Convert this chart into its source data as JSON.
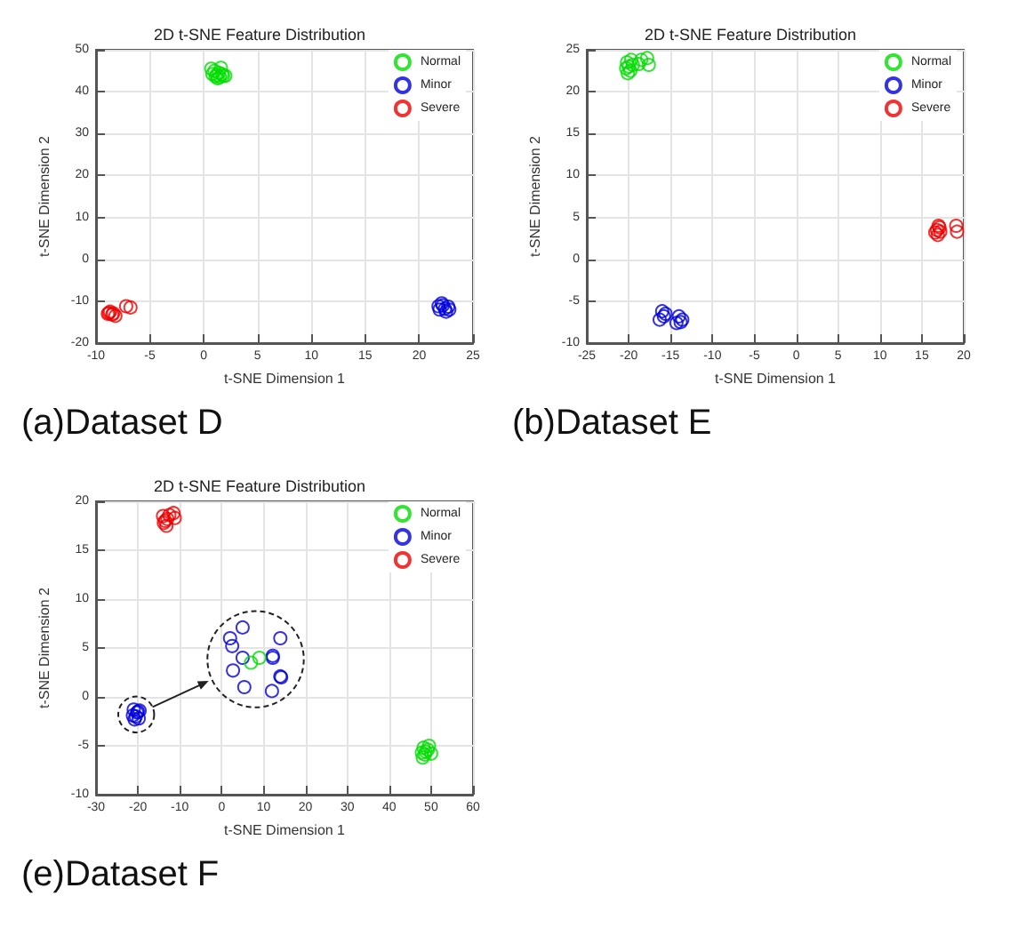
{
  "chart_data": [
    {
      "type": "scatter",
      "title": "2D t-SNE Feature Distribution",
      "xlabel": "t-SNE Dimension 1",
      "ylabel": "t-SNE Dimension 2",
      "annotations": [
        "(a)Dataset D"
      ],
      "xlim": [
        -10,
        25
      ],
      "xticks": [
        -10,
        -5,
        0,
        5,
        10,
        15,
        20,
        25
      ],
      "ylim": [
        -20,
        50
      ],
      "yticks": [
        -20,
        -10,
        0,
        10,
        20,
        30,
        40,
        50
      ],
      "grid": true,
      "legend": "top right",
      "marker": "circle",
      "series": [
        {
          "name": "Normal",
          "color": "#00dd00",
          "x": [
            0.7,
            1.6,
            1,
            1.2,
            1.5,
            1.8,
            1.3,
            2,
            0.8,
            1.4,
            1.1,
            1.7
          ],
          "values": [
            45.5,
            45.7,
            45,
            44,
            43.5,
            43.8,
            43.2,
            43.8,
            44.2,
            44.5,
            43.6,
            44.2
          ]
        },
        {
          "name": "Minor",
          "color": "#0000dd",
          "x": [
            22.2,
            22.7,
            21.9,
            22.5,
            22.1,
            22.4,
            21.8,
            22.8
          ],
          "values": [
            -11,
            -11.3,
            -12,
            -12.5,
            -10.5,
            -11.8,
            -11.2,
            -12
          ]
        },
        {
          "name": "Severe",
          "color": "#ee0000",
          "x": [
            -8.8,
            -8.5,
            -8.2,
            -8.7,
            -8.4,
            -7.2,
            -6.8,
            -8.9
          ],
          "values": [
            -12.8,
            -13.2,
            -13.5,
            -12.5,
            -12.9,
            -11.2,
            -11.5,
            -13
          ]
        }
      ]
    },
    {
      "type": "scatter",
      "title": "2D t-SNE Feature Distribution",
      "xlabel": "t-SNE Dimension 1",
      "ylabel": "t-SNE Dimension 2",
      "annotations": [
        "(b)Dataset E"
      ],
      "xlim": [
        -25,
        20
      ],
      "xticks": [
        -25,
        -20,
        -15,
        -10,
        -5,
        0,
        5,
        10,
        15,
        20
      ],
      "ylim": [
        -10,
        25
      ],
      "yticks": [
        -10,
        -5,
        0,
        5,
        10,
        15,
        20,
        25
      ],
      "grid": true,
      "legend": "top right",
      "marker": "circle",
      "series": [
        {
          "name": "Normal",
          "color": "#00dd00",
          "x": [
            -20.2,
            -19.8,
            -20,
            -19.5,
            -20.3,
            -19.7,
            -18.5,
            -17.8,
            -17.6,
            -18.8,
            -20.1
          ],
          "values": [
            23.5,
            22.5,
            23,
            23.2,
            22.8,
            23.8,
            23.8,
            24,
            23.2,
            23.3,
            22.2
          ]
        },
        {
          "name": "Minor",
          "color": "#0000dd",
          "x": [
            -16,
            -15.8,
            -16.3,
            -15.6,
            -14,
            -13.8,
            -14.3,
            -13.6
          ],
          "values": [
            -6.2,
            -6.8,
            -7.2,
            -6.5,
            -6.8,
            -7.5,
            -7.6,
            -7.2
          ]
        },
        {
          "name": "Severe",
          "color": "#ee0000",
          "x": [
            16.8,
            17,
            17.2,
            16.6,
            16.9,
            17.1,
            19.1,
            19.2
          ],
          "values": [
            3.5,
            4,
            3.3,
            3.2,
            2.9,
            3.8,
            4,
            3.3
          ]
        }
      ]
    },
    {
      "type": "scatter",
      "title": "2D t-SNE Feature Distribution",
      "xlabel": "t-SNE Dimension 1",
      "ylabel": "t-SNE Dimension 2",
      "annotations": [
        "(e)Dataset F"
      ],
      "xlim": [
        -30,
        60
      ],
      "xticks": [
        -30,
        -20,
        -10,
        0,
        10,
        20,
        30,
        40,
        50,
        60
      ],
      "ylim": [
        -10,
        20
      ],
      "yticks": [
        -10,
        -5,
        0,
        5,
        10,
        15,
        20
      ],
      "grid": true,
      "legend": "top right",
      "marker": "circle",
      "series": [
        {
          "name": "Normal",
          "color": "#00dd00",
          "x": [
            48.2,
            48.7,
            49.5,
            50,
            48,
            48.5,
            49.2,
            47.8
          ],
          "values": [
            -5.2,
            -5.6,
            -5,
            -5.8,
            -6.2,
            -5.9,
            -5.4,
            -5.7
          ]
        },
        {
          "name": "Minor",
          "color": "#0000dd",
          "x": [
            -21,
            -20,
            -20.5,
            -19.8,
            -21.2,
            -20.2,
            -19.6,
            -20.8
          ],
          "values": [
            -1.3,
            -1.5,
            -2,
            -2.2,
            -1.9,
            -1.6,
            -1.4,
            -2.3
          ]
        },
        {
          "name": "Severe",
          "color": "#ee0000",
          "x": [
            -14,
            -13.5,
            -13.2,
            -13.8,
            -13,
            -11.5,
            -11.2,
            -12.5
          ],
          "values": [
            18.5,
            18,
            17.5,
            17.8,
            18.2,
            18.8,
            18.3,
            18.6
          ]
        },
        {
          "color": "#0000dd",
          "x": [
            2,
            2.5,
            5,
            5,
            2.7,
            5.4,
            12.2,
            12.2,
            14,
            14,
            14.2,
            12
          ],
          "values": [
            6,
            5.2,
            7.1,
            4,
            2.7,
            1,
            4.2,
            4,
            6,
            2.1,
            2,
            0.6
          ]
        },
        {
          "color": "#00dd00",
          "x": [
            7,
            9
          ],
          "values": [
            3.5,
            4
          ]
        }
      ]
    }
  ]
}
